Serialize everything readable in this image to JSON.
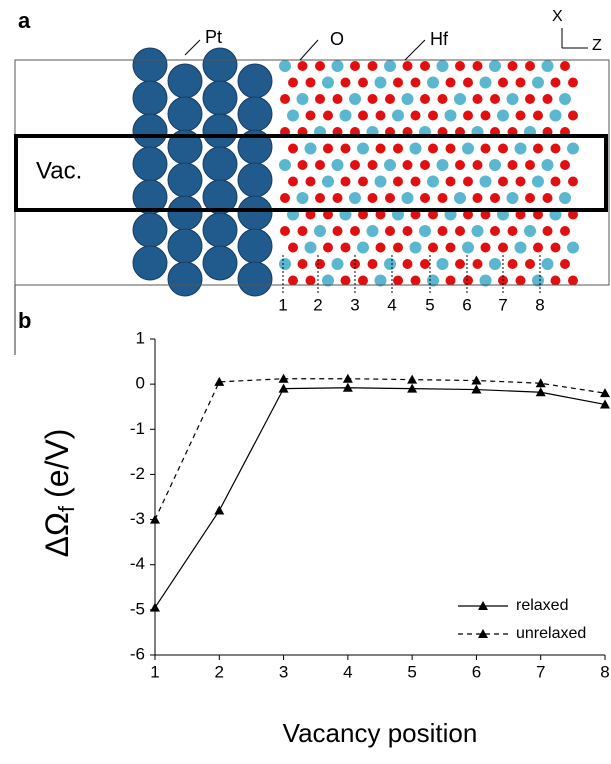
{
  "panel_a": {
    "label": "a",
    "pt": "Pt",
    "o": "O",
    "hf": "Hf",
    "axis_x": "X",
    "axis_z": "Z",
    "vacancy": "Vac.",
    "positions": [
      "1",
      "2",
      "3",
      "4",
      "5",
      "6",
      "7",
      "8"
    ]
  },
  "chart_data": {
    "type": "line",
    "panel_label": "b",
    "x_label": "Vacancy position",
    "y_label": [
      "ΔΩ",
      "f",
      "(e/V)"
    ],
    "x": [
      1,
      2,
      3,
      4,
      5,
      6,
      7,
      8
    ],
    "series": [
      {
        "name": "relaxed",
        "color": "#000000",
        "dash": false,
        "values": [
          -4.95,
          -2.8,
          -0.1,
          -0.08,
          -0.1,
          -0.12,
          -0.18,
          -0.45
        ]
      },
      {
        "name": "unrelaxed",
        "color": "#000000",
        "dash": true,
        "values": [
          -3.0,
          0.05,
          0.12,
          0.12,
          0.1,
          0.08,
          0.02,
          -0.2
        ]
      }
    ],
    "xlim": [
      1,
      8
    ],
    "xticks": [
      1,
      2,
      3,
      4,
      5,
      6,
      7,
      8
    ],
    "ylim": [
      -6,
      1
    ],
    "yticks": [
      -6,
      -5,
      -4,
      -3,
      -2,
      -1,
      0,
      1
    ],
    "legend": "lower right"
  }
}
